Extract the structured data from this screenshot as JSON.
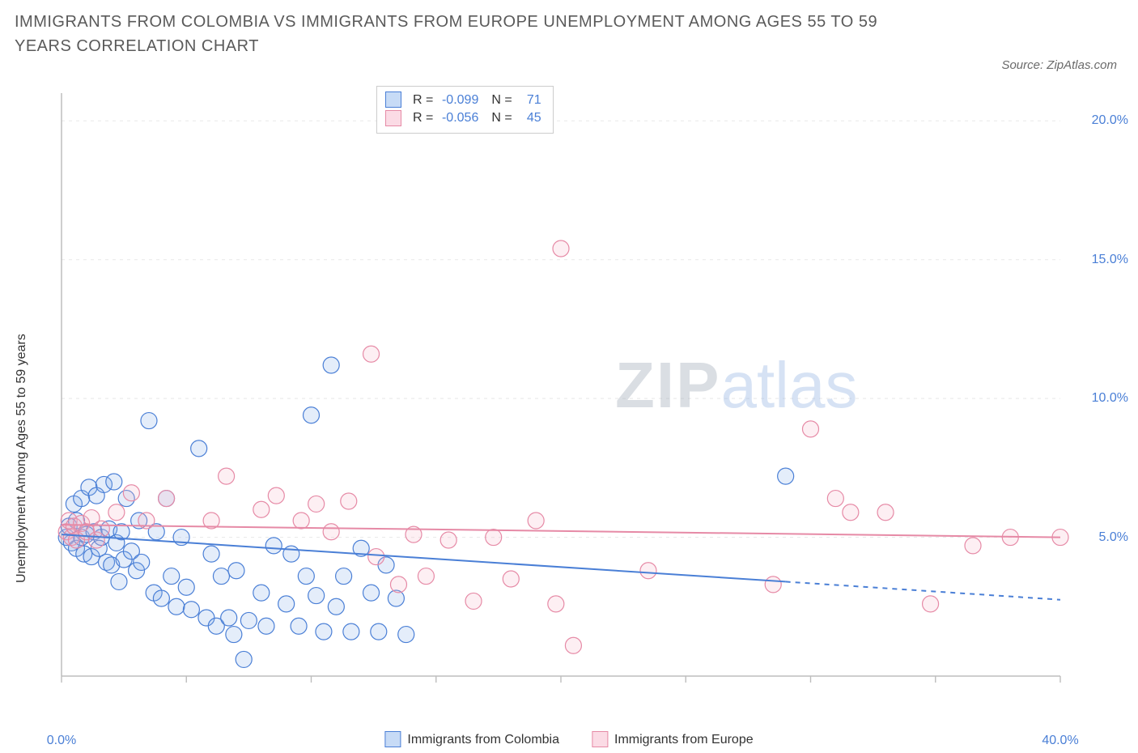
{
  "title": "IMMIGRANTS FROM COLOMBIA VS IMMIGRANTS FROM EUROPE UNEMPLOYMENT AMONG AGES 55 TO 59 YEARS CORRELATION CHART",
  "source_label": "Source: ZipAtlas.com",
  "y_axis_label": "Unemployment Among Ages 55 to 59 years",
  "watermark": {
    "zip": "ZIP",
    "atlas": "atlas"
  },
  "chart": {
    "type": "scatter-with-trend",
    "background_color": "#ffffff",
    "axis_color": "#bdbdbd",
    "grid_color": "#e8e8e8",
    "tick_color": "#bdbdbd",
    "right_label_color": "#4a7fd6",
    "xlim": [
      0,
      40
    ],
    "ylim": [
      0,
      21
    ],
    "x_ticks": [
      0,
      5,
      10,
      15,
      20,
      25,
      30,
      35,
      40
    ],
    "x_tick_labels_shown": {
      "0": "0.0%",
      "40": "40.0%"
    },
    "y_ticks": [
      5,
      10,
      15,
      20
    ],
    "y_tick_labels": {
      "5": "5.0%",
      "10": "10.0%",
      "15": "15.0%",
      "20": "20.0%"
    },
    "marker_radius": 10,
    "marker_stroke_width": 1.2,
    "marker_fill_opacity": 0.22,
    "trend_line_width": 2,
    "series": [
      {
        "id": "colombia",
        "label": "Immigrants from Colombia",
        "color_stroke": "#4a7fd6",
        "color_fill": "#85aee8",
        "R": "-0.099",
        "N": "71",
        "trend": {
          "x1": 0,
          "y1": 5.1,
          "x2": 29,
          "y2": 3.4,
          "dash_from_x": 29,
          "dash_to_x": 40,
          "dash_to_y": 2.75
        },
        "points": [
          [
            0.2,
            5.0
          ],
          [
            0.3,
            5.4
          ],
          [
            0.4,
            4.8
          ],
          [
            0.5,
            6.2
          ],
          [
            0.6,
            4.6
          ],
          [
            0.6,
            5.6
          ],
          [
            0.8,
            5.0
          ],
          [
            0.8,
            6.4
          ],
          [
            0.9,
            4.4
          ],
          [
            1.0,
            5.1
          ],
          [
            1.1,
            6.8
          ],
          [
            1.2,
            4.3
          ],
          [
            1.3,
            5.2
          ],
          [
            1.4,
            6.5
          ],
          [
            1.5,
            4.6
          ],
          [
            1.6,
            5.0
          ],
          [
            1.7,
            6.9
          ],
          [
            1.8,
            4.1
          ],
          [
            1.9,
            5.3
          ],
          [
            2.0,
            4.0
          ],
          [
            2.1,
            7.0
          ],
          [
            2.2,
            4.8
          ],
          [
            2.3,
            3.4
          ],
          [
            2.4,
            5.2
          ],
          [
            2.5,
            4.2
          ],
          [
            2.6,
            6.4
          ],
          [
            2.8,
            4.5
          ],
          [
            3.0,
            3.8
          ],
          [
            3.1,
            5.6
          ],
          [
            3.2,
            4.1
          ],
          [
            3.5,
            9.2
          ],
          [
            3.7,
            3.0
          ],
          [
            3.8,
            5.2
          ],
          [
            4.0,
            2.8
          ],
          [
            4.2,
            6.4
          ],
          [
            4.4,
            3.6
          ],
          [
            4.6,
            2.5
          ],
          [
            4.8,
            5.0
          ],
          [
            5.0,
            3.2
          ],
          [
            5.2,
            2.4
          ],
          [
            5.5,
            8.2
          ],
          [
            5.8,
            2.1
          ],
          [
            6.0,
            4.4
          ],
          [
            6.2,
            1.8
          ],
          [
            6.4,
            3.6
          ],
          [
            6.7,
            2.1
          ],
          [
            6.9,
            1.5
          ],
          [
            7.0,
            3.8
          ],
          [
            7.3,
            0.6
          ],
          [
            7.5,
            2.0
          ],
          [
            8.0,
            3.0
          ],
          [
            8.2,
            1.8
          ],
          [
            8.5,
            4.7
          ],
          [
            9.0,
            2.6
          ],
          [
            9.2,
            4.4
          ],
          [
            9.5,
            1.8
          ],
          [
            9.8,
            3.6
          ],
          [
            10.0,
            9.4
          ],
          [
            10.2,
            2.9
          ],
          [
            10.5,
            1.6
          ],
          [
            10.8,
            11.2
          ],
          [
            11.0,
            2.5
          ],
          [
            11.3,
            3.6
          ],
          [
            11.6,
            1.6
          ],
          [
            12.0,
            4.6
          ],
          [
            12.4,
            3.0
          ],
          [
            12.7,
            1.6
          ],
          [
            13.0,
            4.0
          ],
          [
            13.4,
            2.8
          ],
          [
            13.8,
            1.5
          ],
          [
            29.0,
            7.2
          ]
        ]
      },
      {
        "id": "europe",
        "label": "Immigrants from Europe",
        "color_stroke": "#e68aa6",
        "color_fill": "#f4b8c9",
        "R": "-0.056",
        "N": "45",
        "trend": {
          "x1": 0,
          "y1": 5.45,
          "x2": 40,
          "y2": 5.0
        },
        "points": [
          [
            0.2,
            5.2
          ],
          [
            0.3,
            5.6
          ],
          [
            0.4,
            5.0
          ],
          [
            0.5,
            5.4
          ],
          [
            0.6,
            4.9
          ],
          [
            0.8,
            5.5
          ],
          [
            1.0,
            5.2
          ],
          [
            1.2,
            5.7
          ],
          [
            1.4,
            4.9
          ],
          [
            1.6,
            5.3
          ],
          [
            2.2,
            5.9
          ],
          [
            2.8,
            6.6
          ],
          [
            3.4,
            5.6
          ],
          [
            4.2,
            6.4
          ],
          [
            6.0,
            5.6
          ],
          [
            6.6,
            7.2
          ],
          [
            8.0,
            6.0
          ],
          [
            8.6,
            6.5
          ],
          [
            9.6,
            5.6
          ],
          [
            10.2,
            6.2
          ],
          [
            10.8,
            5.2
          ],
          [
            11.5,
            6.3
          ],
          [
            12.4,
            11.6
          ],
          [
            12.6,
            4.3
          ],
          [
            13.5,
            3.3
          ],
          [
            14.1,
            5.1
          ],
          [
            14.6,
            3.6
          ],
          [
            15.5,
            4.9
          ],
          [
            16.5,
            2.7
          ],
          [
            17.3,
            5.0
          ],
          [
            18.0,
            3.5
          ],
          [
            19.0,
            5.6
          ],
          [
            19.8,
            2.6
          ],
          [
            20.0,
            15.4
          ],
          [
            20.5,
            1.1
          ],
          [
            23.5,
            3.8
          ],
          [
            28.5,
            3.3
          ],
          [
            30.0,
            8.9
          ],
          [
            31.0,
            6.4
          ],
          [
            31.6,
            5.9
          ],
          [
            33.0,
            5.9
          ],
          [
            34.8,
            2.6
          ],
          [
            36.5,
            4.7
          ],
          [
            38.0,
            5.0
          ],
          [
            40.0,
            5.0
          ]
        ]
      }
    ]
  },
  "bottom_legend": [
    {
      "swatch_fill": "#c7dbf6",
      "swatch_border": "#4a7fd6",
      "label": "Immigrants from Colombia"
    },
    {
      "swatch_fill": "#fbdbe5",
      "swatch_border": "#e68aa6",
      "label": "Immigrants from Europe"
    }
  ],
  "top_legend_box": {
    "rows": [
      {
        "swatch_fill": "#c7dbf6",
        "swatch_border": "#4a7fd6",
        "R": "-0.099",
        "N": "71"
      },
      {
        "swatch_fill": "#fbdbe5",
        "swatch_border": "#e68aa6",
        "R": "-0.056",
        "N": "45"
      }
    ]
  }
}
